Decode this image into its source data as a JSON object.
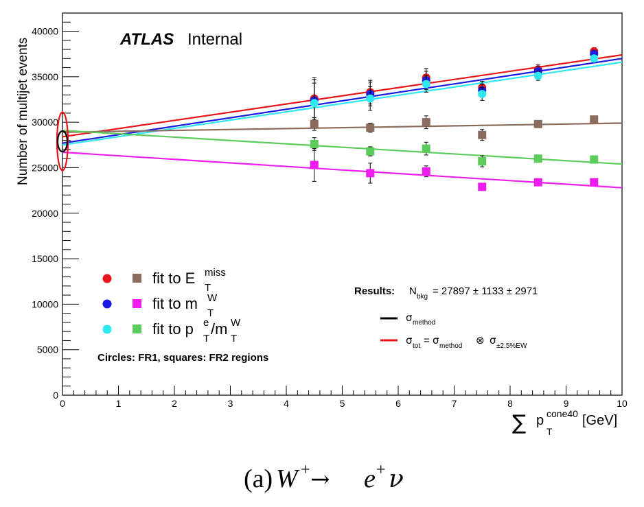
{
  "chart_data": {
    "type": "scatter",
    "title": "",
    "brand": "ATLAS",
    "brand_suffix": "Internal",
    "xlabel": {
      "sum_symbol": "∑",
      "main": "p",
      "sub": "T",
      "sup": "cone40",
      "unit": "[GeV]"
    },
    "ylabel": "Number of multijet events",
    "xlim": [
      0,
      10
    ],
    "ylim": [
      0,
      42000
    ],
    "x_ticks": [
      0,
      1,
      2,
      3,
      4,
      5,
      6,
      7,
      8,
      9,
      10
    ],
    "y_ticks": [
      0,
      5000,
      10000,
      15000,
      20000,
      25000,
      30000,
      35000,
      40000
    ],
    "grid": false,
    "x": [
      4.5,
      5.5,
      6.5,
      7.5,
      8.5,
      9.5
    ],
    "series": [
      {
        "key": "red_circles",
        "marker": "circle",
        "color": "#e8141a",
        "values": [
          32600,
          33300,
          34900,
          33800,
          35800,
          37800
        ],
        "errors": [
          2300,
          1300,
          1000,
          700,
          500,
          400
        ]
      },
      {
        "key": "blue_circles",
        "marker": "circle",
        "color": "#1a1ae0",
        "values": [
          32400,
          33100,
          34600,
          33500,
          35600,
          37500
        ],
        "errors": [
          2300,
          1300,
          1000,
          700,
          500,
          400
        ]
      },
      {
        "key": "cyan_circles",
        "marker": "circle",
        "color": "#2fe8f0",
        "values": [
          32100,
          32600,
          34200,
          33100,
          35100,
          37000
        ],
        "errors": [
          2200,
          1300,
          900,
          700,
          500,
          400
        ]
      },
      {
        "key": "brown_squares",
        "marker": "square",
        "color": "#8b6b5e",
        "values": [
          29800,
          29400,
          30000,
          28600,
          29800,
          30300
        ],
        "errors": [
          700,
          500,
          700,
          600,
          350,
          300
        ]
      },
      {
        "key": "green_squares",
        "marker": "square",
        "color": "#5ccc5c",
        "values": [
          27600,
          26800,
          27100,
          25700,
          26000,
          25900
        ],
        "errors": [
          700,
          500,
          700,
          600,
          300,
          300
        ]
      },
      {
        "key": "magenta_squares",
        "marker": "square",
        "color": "#ee1cee",
        "values": [
          25300,
          24400,
          24600,
          22900,
          23400,
          23400
        ],
        "errors": [
          1800,
          1100,
          600,
          400,
          300,
          300
        ]
      }
    ],
    "fits": [
      {
        "key": "red_fit",
        "color": "#e8141a",
        "y0": 28400,
        "y10": 37400
      },
      {
        "key": "blue_fit",
        "color": "#1a1ae0",
        "y0": 27700,
        "y10": 37000
      },
      {
        "key": "cyan_fit",
        "color": "#2fe8f0",
        "y0": 27500,
        "y10": 36600
      },
      {
        "key": "brown_fit",
        "color": "#8b6b5e",
        "y0": 28900,
        "y10": 29900
      },
      {
        "key": "green_fit",
        "color": "#5ccc5c",
        "y0": 29100,
        "y10": 25400
      },
      {
        "key": "magenta_fit",
        "color": "#ee1cee",
        "y0": 26700,
        "y10": 22800
      }
    ],
    "ellipses": [
      {
        "key": "sigma_tot_ellipse",
        "color": "#e8141a",
        "cx": 0,
        "cy": 27897,
        "ry": 3200
      },
      {
        "key": "sigma_method_ellipse",
        "color": "#000000",
        "cx": 0,
        "cy": 27897,
        "ry": 1133
      }
    ],
    "legend": {
      "placement": "bottom-left",
      "entries": [
        {
          "text": "fit to E",
          "sub": "T",
          "sup": "miss",
          "suffix": ""
        },
        {
          "text": "fit to m",
          "sub": "T",
          "sup": "W",
          "suffix": ""
        },
        {
          "text": "fit to p",
          "sub": "T",
          "sup": "e",
          "suffix": "/m",
          "suffix_sub": "T",
          "suffix_sup": "W"
        }
      ],
      "note": "Circles: FR1, squares: FR2 regions"
    },
    "results": {
      "label": "Results:",
      "n": "N",
      "n_sub": "bkg",
      "value_text": "= 27897 ± 1133 ± 2971",
      "sigma": "σ",
      "method_sub": "method",
      "tot_sub": "tot",
      "equals": "=",
      "otimes": "⊗",
      "ew_sub": "±2.5%EW"
    }
  },
  "caption": {
    "prefix": "(a) ",
    "W": "W",
    "sup_plus": "+",
    "arrow": " → ",
    "e": "e",
    "nu": "ν"
  }
}
